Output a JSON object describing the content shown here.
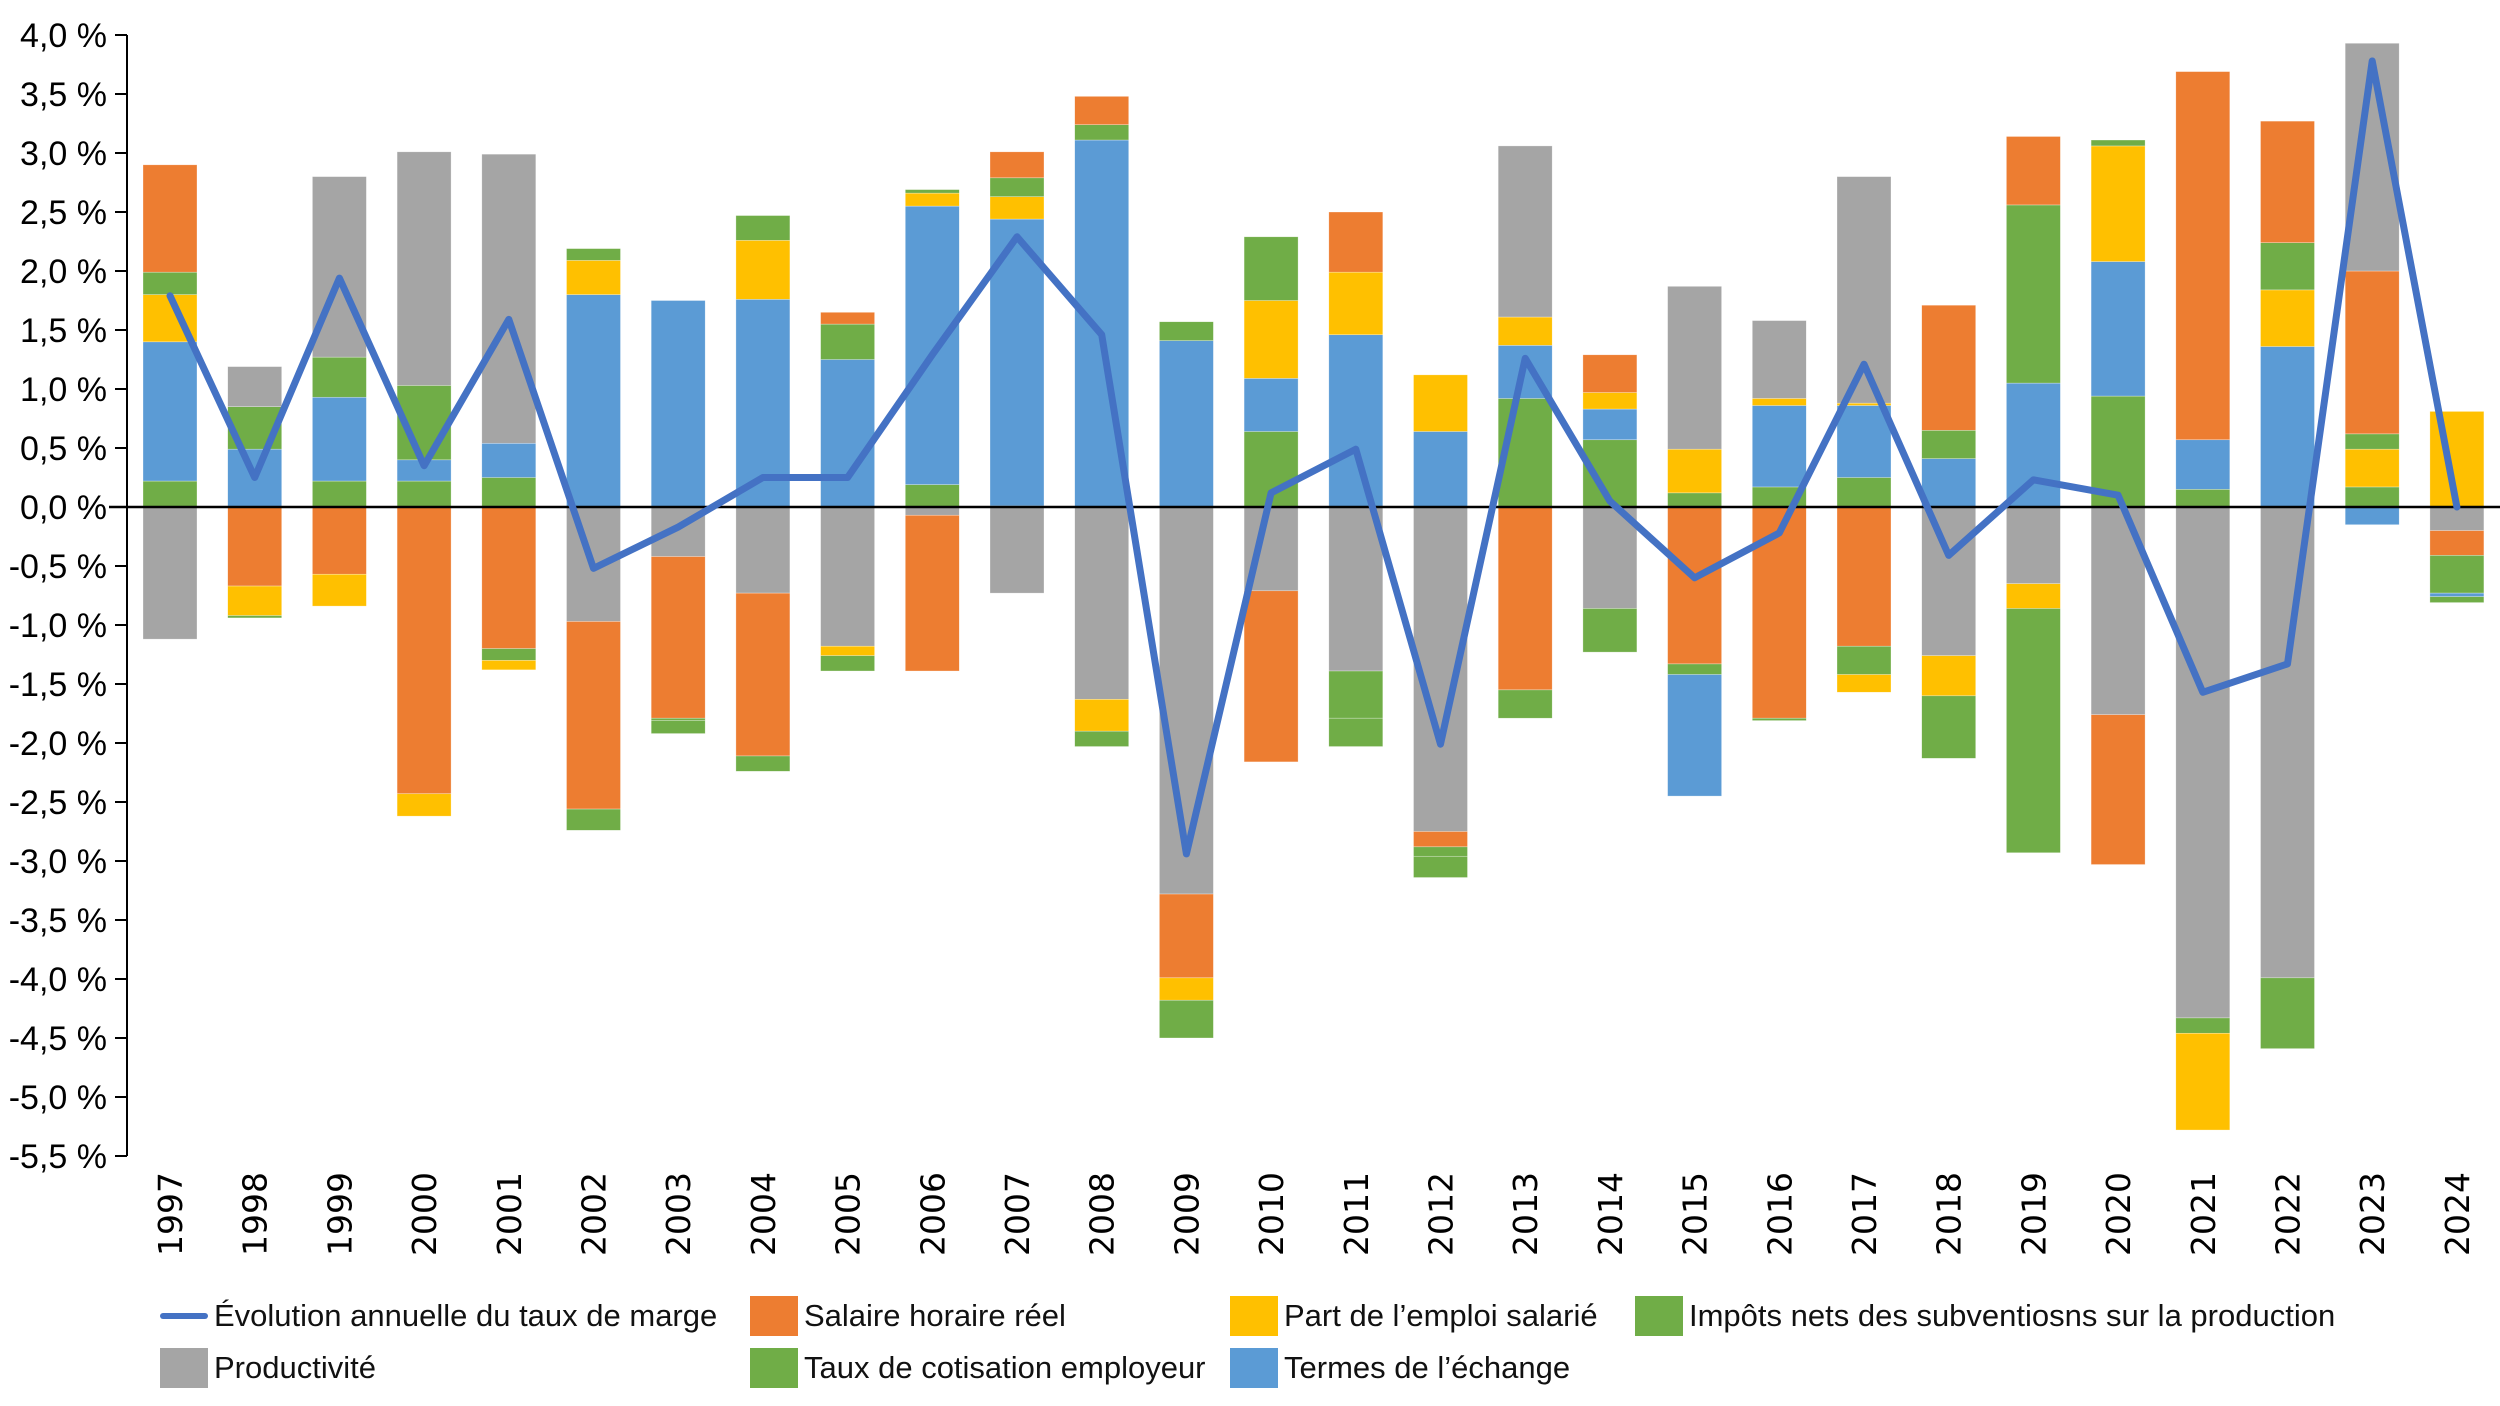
{
  "chart_data": {
    "type": "bar",
    "subtype": "stacked-bar-with-line",
    "title": "",
    "xlabel": "",
    "ylabel": "",
    "ylim": [
      -5.5,
      4.0
    ],
    "ytick_step": 0.5,
    "ytick_labels": [
      "4,0 %",
      "3,5 %",
      "3,0 %",
      "2,5 %",
      "2,0 %",
      "1,5 %",
      "1,0 %",
      "0,5 %",
      "0,0 %",
      "-0,5 %",
      "-1,0 %",
      "-1,5 %",
      "-2,0 %",
      "-2,5 %",
      "-3,0 %",
      "-3,5 %",
      "-4,0 %",
      "-4,5 %",
      "-5,0 %",
      "-5,5 %"
    ],
    "grid": false,
    "legend_position": "bottom",
    "categories": [
      "1997",
      "1998",
      "1999",
      "2000",
      "2001",
      "2002",
      "2003",
      "2004",
      "2005",
      "2006",
      "2007",
      "2008",
      "2009",
      "2010",
      "2011",
      "2012",
      "2013",
      "2014",
      "2015",
      "2016",
      "2017",
      "2018",
      "2019",
      "2020",
      "2021",
      "2022",
      "2023",
      "2024"
    ],
    "series_meta": {
      "S": {
        "name": "Salaire horaire réel",
        "color": "#ED7D31"
      },
      "P": {
        "name": "Part de l’emploi salarié",
        "color": "#FFC000"
      },
      "I": {
        "name": "Impôts nets des subventiosns sur la production",
        "color": "#70AD47"
      },
      "G": {
        "name": "Productivité",
        "color": "#A5A5A5"
      },
      "T": {
        "name": "Taux de cotisation employeur",
        "color": "#70AD47"
      },
      "E": {
        "name": "Termes de l’échange",
        "color": "#5B9BD5"
      }
    },
    "line": {
      "name": "Évolution annuelle du taux de marge",
      "color": "#4472C4",
      "values": [
        1.79,
        0.25,
        1.94,
        0.35,
        1.59,
        -0.52,
        -0.17,
        0.25,
        0.25,
        1.29,
        2.29,
        1.46,
        -2.94,
        0.12,
        0.49,
        -2.01,
        1.26,
        0.05,
        -0.6,
        -0.22,
        1.21,
        -0.41,
        0.23,
        0.1,
        -1.57,
        -1.33,
        3.78,
        0.0
      ]
    },
    "stacks": [
      {
        "pos": [
          [
            "T",
            0.22
          ],
          [
            "E",
            1.18
          ],
          [
            "P",
            0.4
          ],
          [
            "I",
            0.19
          ],
          [
            "S",
            0.91
          ]
        ],
        "neg": [
          [
            "G",
            -1.12
          ]
        ]
      },
      {
        "pos": [
          [
            "E",
            0.49
          ],
          [
            "I",
            0.36
          ],
          [
            "G",
            0.34
          ]
        ],
        "neg": [
          [
            "S",
            -0.67
          ],
          [
            "P",
            -0.25
          ],
          [
            "I",
            -0.02
          ]
        ]
      },
      {
        "pos": [
          [
            "T",
            0.22
          ],
          [
            "E",
            0.71
          ],
          [
            "I",
            0.34
          ],
          [
            "G",
            1.53
          ]
        ],
        "neg": [
          [
            "S",
            -0.57
          ],
          [
            "P",
            -0.27
          ]
        ]
      },
      {
        "pos": [
          [
            "T",
            0.22
          ],
          [
            "E",
            0.18
          ],
          [
            "I",
            0.63
          ],
          [
            "G",
            1.98
          ]
        ],
        "neg": [
          [
            "S",
            -2.43
          ],
          [
            "P",
            -0.19
          ]
        ]
      },
      {
        "pos": [
          [
            "T",
            0.25
          ],
          [
            "E",
            0.29
          ],
          [
            "G",
            2.45
          ]
        ],
        "neg": [
          [
            "S",
            -1.2
          ],
          [
            "I",
            -0.1
          ],
          [
            "P",
            -0.08
          ]
        ]
      },
      {
        "pos": [
          [
            "E",
            1.8
          ],
          [
            "P",
            0.29
          ],
          [
            "I",
            0.1
          ]
        ],
        "neg": [
          [
            "G",
            -0.97
          ],
          [
            "S",
            -1.59
          ],
          [
            "I",
            -0.18
          ]
        ]
      },
      {
        "pos": [
          [
            "E",
            1.75
          ]
        ],
        "neg": [
          [
            "G",
            -0.42
          ],
          [
            "S",
            -1.37
          ],
          [
            "T",
            -0.02
          ],
          [
            "I",
            -0.11
          ]
        ]
      },
      {
        "pos": [
          [
            "E",
            1.76
          ],
          [
            "P",
            0.5
          ],
          [
            "I",
            0.21
          ]
        ],
        "neg": [
          [
            "G",
            -0.73
          ],
          [
            "S",
            -1.38
          ],
          [
            "I",
            -0.13
          ]
        ]
      },
      {
        "pos": [
          [
            "E",
            1.25
          ],
          [
            "I",
            0.3
          ],
          [
            "S",
            0.1
          ]
        ],
        "neg": [
          [
            "G",
            -1.18
          ],
          [
            "P",
            -0.08
          ],
          [
            "I",
            -0.13
          ]
        ]
      },
      {
        "pos": [
          [
            "T",
            0.19
          ],
          [
            "E",
            2.36
          ],
          [
            "P",
            0.11
          ],
          [
            "I",
            0.03
          ]
        ],
        "neg": [
          [
            "G",
            -0.07
          ],
          [
            "S",
            -1.32
          ]
        ]
      },
      {
        "pos": [
          [
            "T",
            0.01
          ],
          [
            "E",
            2.43
          ],
          [
            "P",
            0.19
          ],
          [
            "I",
            0.16
          ],
          [
            "S",
            0.22
          ]
        ],
        "neg": [
          [
            "G",
            -0.73
          ]
        ]
      },
      {
        "pos": [
          [
            "E",
            3.11
          ],
          [
            "I",
            0.13
          ],
          [
            "S",
            0.24
          ]
        ],
        "neg": [
          [
            "G",
            -1.63
          ],
          [
            "P",
            -0.27
          ],
          [
            "I",
            -0.13
          ]
        ]
      },
      {
        "pos": [
          [
            "E",
            1.41
          ],
          [
            "I",
            0.16
          ]
        ],
        "neg": [
          [
            "G",
            -3.28
          ],
          [
            "S",
            -0.71
          ],
          [
            "P",
            -0.19
          ],
          [
            "I",
            -0.32
          ]
        ]
      },
      {
        "pos": [
          [
            "T",
            0.64
          ],
          [
            "E",
            0.45
          ],
          [
            "P",
            0.66
          ],
          [
            "I",
            0.54
          ]
        ],
        "neg": [
          [
            "G",
            -0.71
          ],
          [
            "S",
            -1.45
          ]
        ]
      },
      {
        "pos": [
          [
            "E",
            1.46
          ],
          [
            "P",
            0.53
          ],
          [
            "S",
            0.51
          ]
        ],
        "neg": [
          [
            "G",
            -1.39
          ],
          [
            "T",
            -0.4
          ],
          [
            "I",
            -0.24
          ]
        ]
      },
      {
        "pos": [
          [
            "E",
            0.64
          ],
          [
            "P",
            0.48
          ]
        ],
        "neg": [
          [
            "G",
            -2.75
          ],
          [
            "S",
            -0.13
          ],
          [
            "T",
            -0.08
          ],
          [
            "I",
            -0.18
          ]
        ]
      },
      {
        "pos": [
          [
            "T",
            0.92
          ],
          [
            "E",
            0.45
          ],
          [
            "P",
            0.24
          ],
          [
            "G",
            1.45
          ]
        ],
        "neg": [
          [
            "S",
            -1.55
          ],
          [
            "I",
            -0.24
          ]
        ]
      },
      {
        "pos": [
          [
            "T",
            0.57
          ],
          [
            "E",
            0.26
          ],
          [
            "P",
            0.14
          ],
          [
            "S",
            0.32
          ]
        ],
        "neg": [
          [
            "G",
            -0.86
          ],
          [
            "I",
            -0.37
          ]
        ]
      },
      {
        "pos": [
          [
            "T",
            0.12
          ],
          [
            "P",
            0.37
          ],
          [
            "G",
            1.38
          ]
        ],
        "neg": [
          [
            "S",
            -1.33
          ],
          [
            "I",
            -0.09
          ],
          [
            "E",
            -1.03
          ]
        ]
      },
      {
        "pos": [
          [
            "T",
            0.17
          ],
          [
            "E",
            0.69
          ],
          [
            "P",
            0.06
          ],
          [
            "G",
            0.66
          ]
        ],
        "neg": [
          [
            "S",
            -1.79
          ],
          [
            "I",
            -0.02
          ]
        ]
      },
      {
        "pos": [
          [
            "T",
            0.25
          ],
          [
            "E",
            0.61
          ],
          [
            "P",
            0.02
          ],
          [
            "G",
            1.92
          ]
        ],
        "neg": [
          [
            "S",
            -1.18
          ],
          [
            "I",
            -0.24
          ],
          [
            "P",
            -0.15
          ]
        ]
      },
      {
        "pos": [
          [
            "E",
            0.41
          ],
          [
            "I",
            0.24
          ],
          [
            "S",
            1.06
          ]
        ],
        "neg": [
          [
            "G",
            -1.26
          ],
          [
            "P",
            -0.34
          ],
          [
            "I",
            -0.53
          ]
        ]
      },
      {
        "pos": [
          [
            "E",
            1.05
          ],
          [
            "I",
            1.51
          ],
          [
            "S",
            0.58
          ]
        ],
        "neg": [
          [
            "G",
            -0.65
          ],
          [
            "P",
            -0.21
          ],
          [
            "I",
            -2.07
          ]
        ]
      },
      {
        "pos": [
          [
            "T",
            0.94
          ],
          [
            "E",
            1.14
          ],
          [
            "P",
            0.98
          ],
          [
            "I",
            0.05
          ]
        ],
        "neg": [
          [
            "G",
            -1.76
          ],
          [
            "S",
            -1.27
          ]
        ]
      },
      {
        "pos": [
          [
            "T",
            0.15
          ],
          [
            "E",
            0.42
          ],
          [
            "S",
            3.12
          ]
        ],
        "neg": [
          [
            "G",
            -4.33
          ],
          [
            "I",
            -0.13
          ],
          [
            "P",
            -0.82
          ]
        ]
      },
      {
        "pos": [
          [
            "E",
            1.36
          ],
          [
            "P",
            0.48
          ],
          [
            "I",
            0.4
          ],
          [
            "S",
            1.03
          ]
        ],
        "neg": [
          [
            "G",
            -3.99
          ],
          [
            "I",
            -0.6
          ]
        ]
      },
      {
        "pos": [
          [
            "T",
            0.17
          ],
          [
            "P",
            0.32
          ],
          [
            "I",
            0.13
          ],
          [
            "S",
            1.38
          ],
          [
            "G",
            1.93
          ]
        ],
        "neg": [
          [
            "E",
            -0.15
          ]
        ]
      },
      {
        "pos": [
          [
            "P",
            0.81
          ]
        ],
        "neg": [
          [
            "G",
            -0.2
          ],
          [
            "S",
            -0.21
          ],
          [
            "I",
            -0.32
          ],
          [
            "E",
            -0.03
          ],
          [
            "T",
            -0.05
          ]
        ]
      }
    ]
  },
  "legend": {
    "items": [
      {
        "label": "Évolution annuelle du taux de marge",
        "kind": "line",
        "color": "#4472C4"
      },
      {
        "label": "Salaire horaire réel",
        "kind": "box",
        "color": "#ED7D31"
      },
      {
        "label": "Part de l’emploi salarié",
        "kind": "box",
        "color": "#FFC000"
      },
      {
        "label": "Impôts nets des subventiosns sur la production",
        "kind": "box",
        "color": "#70AD47"
      },
      {
        "label": "Productivité",
        "kind": "box",
        "color": "#A5A5A5"
      },
      {
        "label": "Taux de cotisation employeur",
        "kind": "box",
        "color": "#70AD47"
      },
      {
        "label": "Termes de l’échange",
        "kind": "box",
        "color": "#5B9BD5"
      }
    ]
  }
}
